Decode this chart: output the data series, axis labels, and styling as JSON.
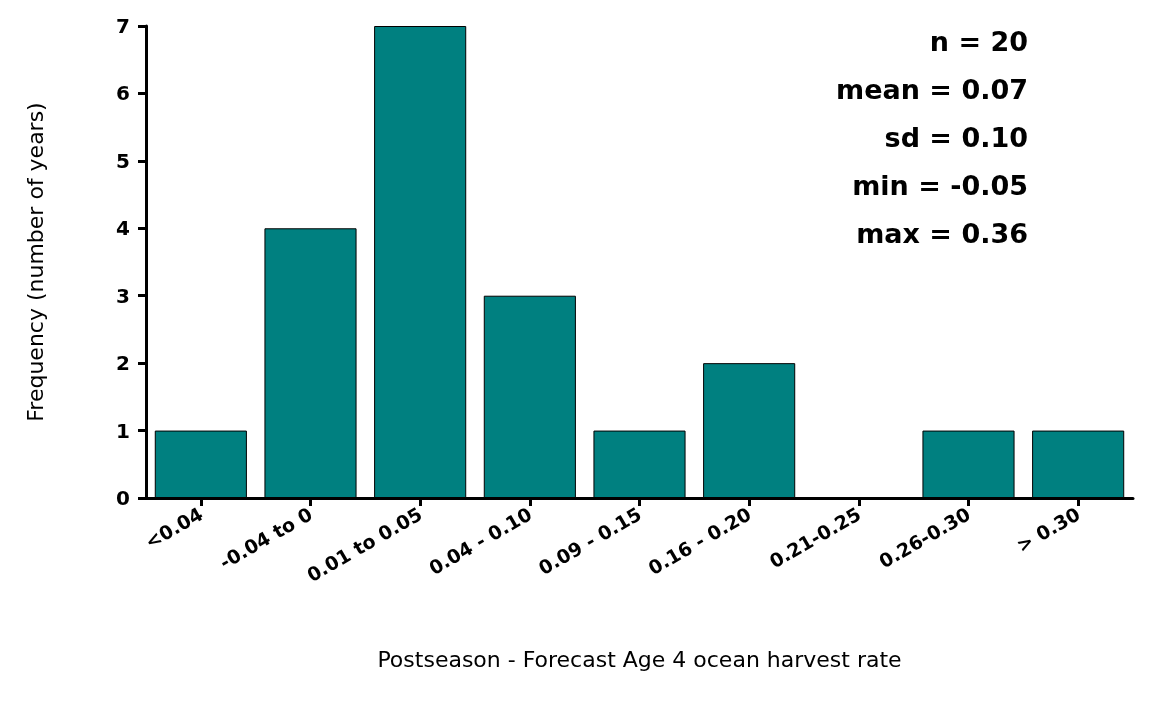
{
  "chart_data": {
    "type": "bar",
    "xlabel": "Postseason - Forecast Age 4 ocean harvest rate",
    "ylabel": "Frequency (number of years)",
    "categories": [
      "<0.04",
      "-0.04 to 0",
      "0.01 to 0.05",
      "0.04 - 0.10",
      "0.09 - 0.15",
      "0.16 - 0.20",
      "0.21-0.25",
      "0.26-0.30",
      "> 0.30"
    ],
    "values": [
      1,
      4,
      7,
      3,
      1,
      2,
      0,
      1,
      1
    ],
    "color": "#008080",
    "ylim": [
      0,
      7
    ],
    "yticks": [
      0,
      1,
      2,
      3,
      4,
      5,
      6,
      7
    ],
    "grid": false,
    "annotations": [
      "n = 20",
      "mean = 0.07",
      "sd = 0.10",
      "min = -0.05",
      "max = 0.36"
    ]
  }
}
